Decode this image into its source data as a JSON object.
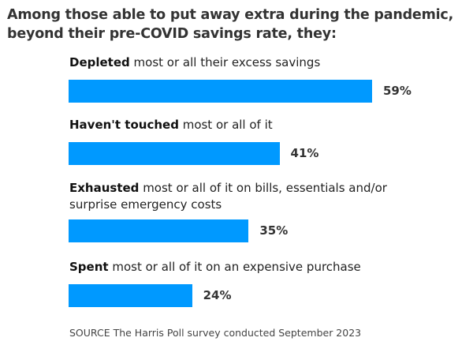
{
  "chart_data": {
    "type": "bar",
    "orientation": "horizontal",
    "title": "Among those able to put away extra during the pandemic, beyond their pre-COVID savings rate, they:",
    "categories": [
      {
        "bold": "Depleted",
        "rest": " most or all their excess savings"
      },
      {
        "bold": "Haven't touched",
        "rest": " most or all of it"
      },
      {
        "bold": "Exhausted",
        "rest": " most or all of it on bills, essentials and/or surprise emergency costs"
      },
      {
        "bold": "Spent",
        "rest": " most or all of it on an expensive purchase"
      }
    ],
    "values": [
      59,
      41,
      35,
      24
    ],
    "value_labels": [
      "59%",
      "41%",
      "35%",
      "24%"
    ],
    "unit": "%",
    "bar_color": "#0099ff",
    "grid": false,
    "source": "SOURCE The Harris Poll survey conducted September 2023"
  }
}
